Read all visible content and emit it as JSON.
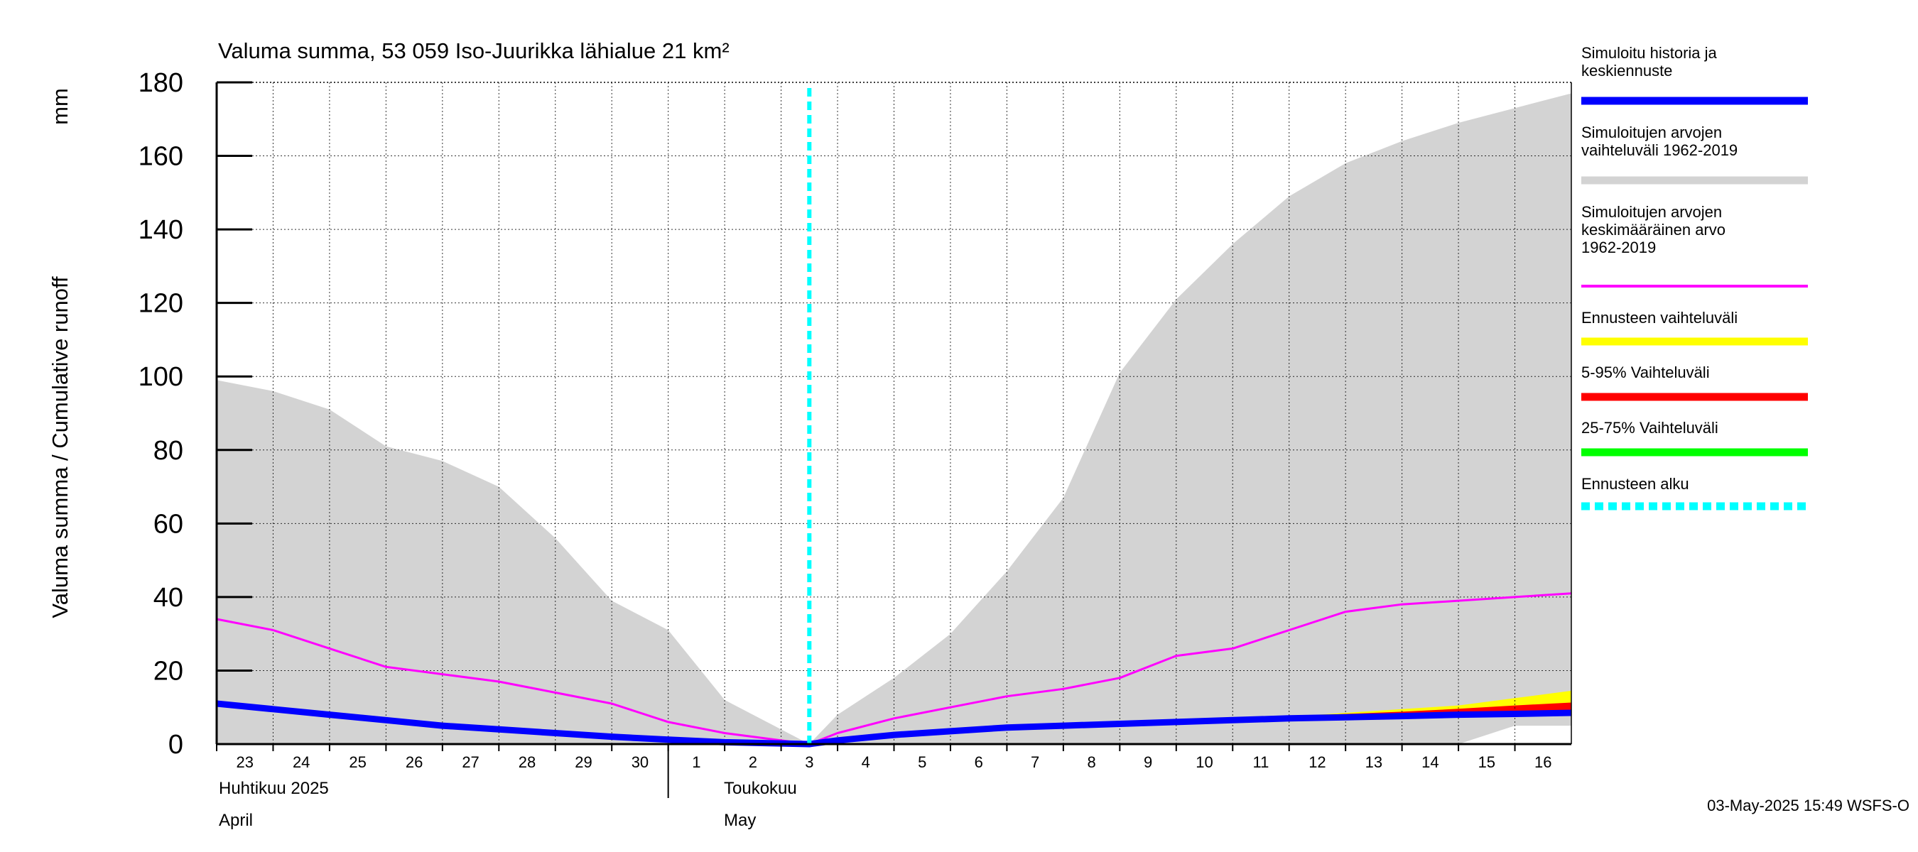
{
  "title": "Valuma summa, 53 059 Iso-Juurikka lähialue 21 km²",
  "timestamp": "03-May-2025 15:49 WSFS-O",
  "chart_data": {
    "type": "area",
    "title": "Valuma summa, 53 059 Iso-Juurikka lähialue 21 km²",
    "ylabel": "Valuma summa / Cumulative runoff",
    "yunit": "mm",
    "ylim": [
      0,
      180
    ],
    "yticks": [
      0,
      20,
      40,
      60,
      80,
      100,
      120,
      140,
      160,
      180
    ],
    "grid": true,
    "legend_position": "right",
    "x_day_labels": [
      "23",
      "24",
      "25",
      "26",
      "27",
      "28",
      "29",
      "30",
      "1",
      "2",
      "3",
      "4",
      "5",
      "6",
      "7",
      "8",
      "9",
      "10",
      "11",
      "12",
      "13",
      "14",
      "15",
      "16"
    ],
    "month_labels": [
      {
        "fi": "Huhtikuu  2025",
        "en": "April"
      },
      {
        "fi": "Toukokuu",
        "en": "May"
      }
    ],
    "forecast_start_day": 10.5,
    "x": [
      0,
      1,
      2,
      3,
      4,
      5,
      6,
      7,
      8,
      9,
      10.5,
      11,
      12,
      13,
      14,
      15,
      16,
      17,
      18,
      19,
      20,
      21,
      22,
      23,
      24
    ],
    "series": [
      {
        "name": "Simuloitujen arvojen vaihteluväli 1962-2019",
        "kind": "band",
        "color": "#d3d3d3",
        "upper": [
          99,
          96,
          91,
          81,
          77,
          70,
          56,
          39,
          31,
          12,
          0,
          8,
          18,
          30,
          47,
          67,
          101,
          121,
          136,
          149,
          158,
          164,
          169,
          173,
          177
        ],
        "lower": [
          0,
          0,
          0,
          0,
          0,
          0,
          0,
          0,
          0,
          0,
          0,
          0,
          0,
          0,
          0,
          0,
          0,
          0,
          0,
          0,
          0,
          0,
          0,
          5,
          5
        ]
      },
      {
        "name": "Simuloitujen arvojen keskimääräinen arvo 1962-2019",
        "kind": "line",
        "color": "#ff00ff",
        "values": [
          34,
          31,
          26,
          21,
          19,
          17,
          14,
          11,
          6,
          3,
          0,
          3,
          7,
          10,
          13,
          15,
          18,
          24,
          26,
          31,
          36,
          38,
          39,
          40,
          41
        ]
      },
      {
        "name": "Ennusteen vaihteluväli",
        "kind": "band",
        "color": "#ffff00",
        "x": [
          18,
          19,
          20,
          21,
          22,
          23,
          24
        ],
        "upper": [
          7,
          7.5,
          8.5,
          9.5,
          10.5,
          12.5,
          14.5
        ],
        "lower": [
          7,
          7,
          7.5,
          7.8,
          8,
          8.2,
          8.5
        ]
      },
      {
        "name": "5-95% Vaihteluväli",
        "kind": "band",
        "color": "#ff0000",
        "x": [
          18,
          19,
          20,
          21,
          22,
          23,
          24
        ],
        "upper": [
          7,
          7.5,
          8.2,
          8.8,
          9.6,
          10.5,
          11.3
        ],
        "lower": [
          7,
          7,
          7.5,
          7.8,
          8,
          8.2,
          8.5
        ]
      },
      {
        "name": "25-75% Vaihteluväli",
        "kind": "band",
        "color": "#00cc00",
        "x": [
          18,
          19,
          20,
          21,
          22,
          23,
          24
        ],
        "upper": [
          7,
          7.2,
          7.6,
          8,
          8.4,
          8.8,
          9.2
        ],
        "lower": [
          7,
          7,
          7.4,
          7.7,
          8,
          8.3,
          8.6
        ]
      },
      {
        "name": "Simuloitu historia ja keskiennuste",
        "kind": "line",
        "color": "#0000ff",
        "values": [
          11,
          9.5,
          8,
          6.5,
          5,
          4,
          3,
          2,
          1.2,
          0.5,
          0,
          1,
          2.5,
          3.5,
          4.5,
          5,
          5.5,
          6,
          6.5,
          7,
          7.3,
          7.6,
          8,
          8.2,
          8.5
        ]
      }
    ],
    "legend": [
      {
        "lines": [
          "Simuloitu historia ja",
          "keskiennuste"
        ],
        "color": "#0000ff",
        "style": "solid"
      },
      {
        "lines": [
          "Simuloitujen arvojen",
          "vaihteluväli 1962-2019"
        ],
        "color": "#d3d3d3",
        "style": "solid"
      },
      {
        "lines": [
          "Simuloitujen arvojen",
          "keskimääräinen arvo",
          "   1962-2019"
        ],
        "color": "#ff00ff",
        "style": "thin"
      },
      {
        "lines": [
          "Ennusteen vaihteluväli"
        ],
        "color": "#ffff00",
        "style": "solid"
      },
      {
        "lines": [
          "5-95% Vaihteluväli"
        ],
        "color": "#ff0000",
        "style": "solid"
      },
      {
        "lines": [
          "25-75% Vaihteluväli"
        ],
        "color": "#00ff00",
        "style": "solid"
      },
      {
        "lines": [
          "Ennusteen alku"
        ],
        "color": "#00ffff",
        "style": "dashed"
      }
    ]
  }
}
